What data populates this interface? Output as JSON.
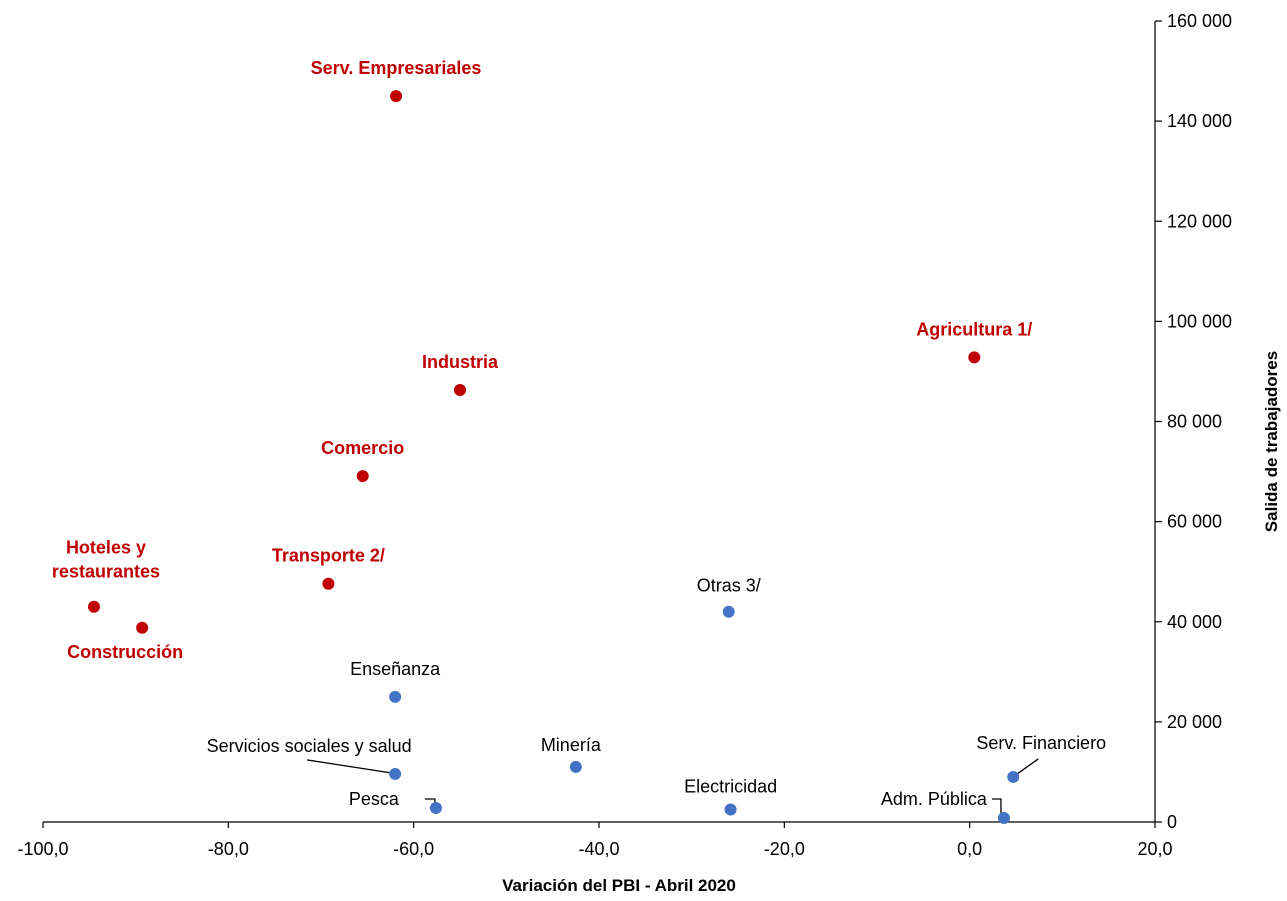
{
  "chart_data": {
    "type": "scatter",
    "xlabel": "Variación del PBI - Abril 2020",
    "ylabel": "Salida de trabajadores",
    "xlim": [
      -100,
      20
    ],
    "ylim": [
      0,
      160000
    ],
    "x_ticks": [
      {
        "value": -100,
        "label": "-100,0"
      },
      {
        "value": -80,
        "label": "-80,0"
      },
      {
        "value": -60,
        "label": "-60,0"
      },
      {
        "value": -40,
        "label": "-40,0"
      },
      {
        "value": -20,
        "label": "-20,0"
      },
      {
        "value": 0,
        "label": "0,0"
      },
      {
        "value": 20,
        "label": "20,0"
      }
    ],
    "y_ticks": [
      {
        "value": 0,
        "label": "0"
      },
      {
        "value": 20000,
        "label": "20 000"
      },
      {
        "value": 40000,
        "label": "40 000"
      },
      {
        "value": 60000,
        "label": "60 000"
      },
      {
        "value": 80000,
        "label": "80 000"
      },
      {
        "value": 100000,
        "label": "100 000"
      },
      {
        "value": 120000,
        "label": "120 000"
      },
      {
        "value": 140000,
        "label": "140 000"
      },
      {
        "value": 160000,
        "label": "160 000"
      }
    ],
    "y_axis_position": "right",
    "grid": false,
    "colors": {
      "highlight": "#c00000",
      "other": "#4472c4"
    },
    "points": [
      {
        "name": "serv-empresariales",
        "label": "Serv. Empresariales",
        "x": -61.9,
        "y": 145000,
        "group": "highlight"
      },
      {
        "name": "industria",
        "label": "Industria",
        "x": -55.0,
        "y": 86300,
        "group": "highlight"
      },
      {
        "name": "agricultura",
        "label": "Agricultura 1/",
        "x": 0.5,
        "y": 92800,
        "group": "highlight"
      },
      {
        "name": "comercio",
        "label": "Comercio",
        "x": -65.5,
        "y": 69100,
        "group": "highlight"
      },
      {
        "name": "transporte",
        "label": "Transporte 2/",
        "x": -69.2,
        "y": 47600,
        "group": "highlight"
      },
      {
        "name": "hoteles",
        "label": "Hoteles y\nrestaurantes",
        "x": -94.5,
        "y": 43000,
        "group": "highlight"
      },
      {
        "name": "construccion",
        "label": "Construcción",
        "x": -89.3,
        "y": 38800,
        "group": "highlight"
      },
      {
        "name": "otras",
        "label": "Otras 3/",
        "x": -26.0,
        "y": 42000,
        "group": "other"
      },
      {
        "name": "ensenanza",
        "label": "Enseñanza",
        "x": -62.0,
        "y": 25000,
        "group": "other"
      },
      {
        "name": "servicios-sociales",
        "label": "Servicios sociales y salud",
        "x": -62.0,
        "y": 9600,
        "group": "other"
      },
      {
        "name": "mineria",
        "label": "Minería",
        "x": -42.5,
        "y": 11000,
        "group": "other"
      },
      {
        "name": "pesca",
        "label": "Pesca",
        "x": -57.6,
        "y": 2800,
        "group": "other"
      },
      {
        "name": "electricidad",
        "label": "Electricidad",
        "x": -25.8,
        "y": 2500,
        "group": "other"
      },
      {
        "name": "serv-financiero",
        "label": "Serv. Financiero",
        "x": 4.7,
        "y": 9000,
        "group": "other"
      },
      {
        "name": "adm-publica",
        "label": "Adm. Pública",
        "x": 3.7,
        "y": 800,
        "group": "other"
      }
    ]
  }
}
